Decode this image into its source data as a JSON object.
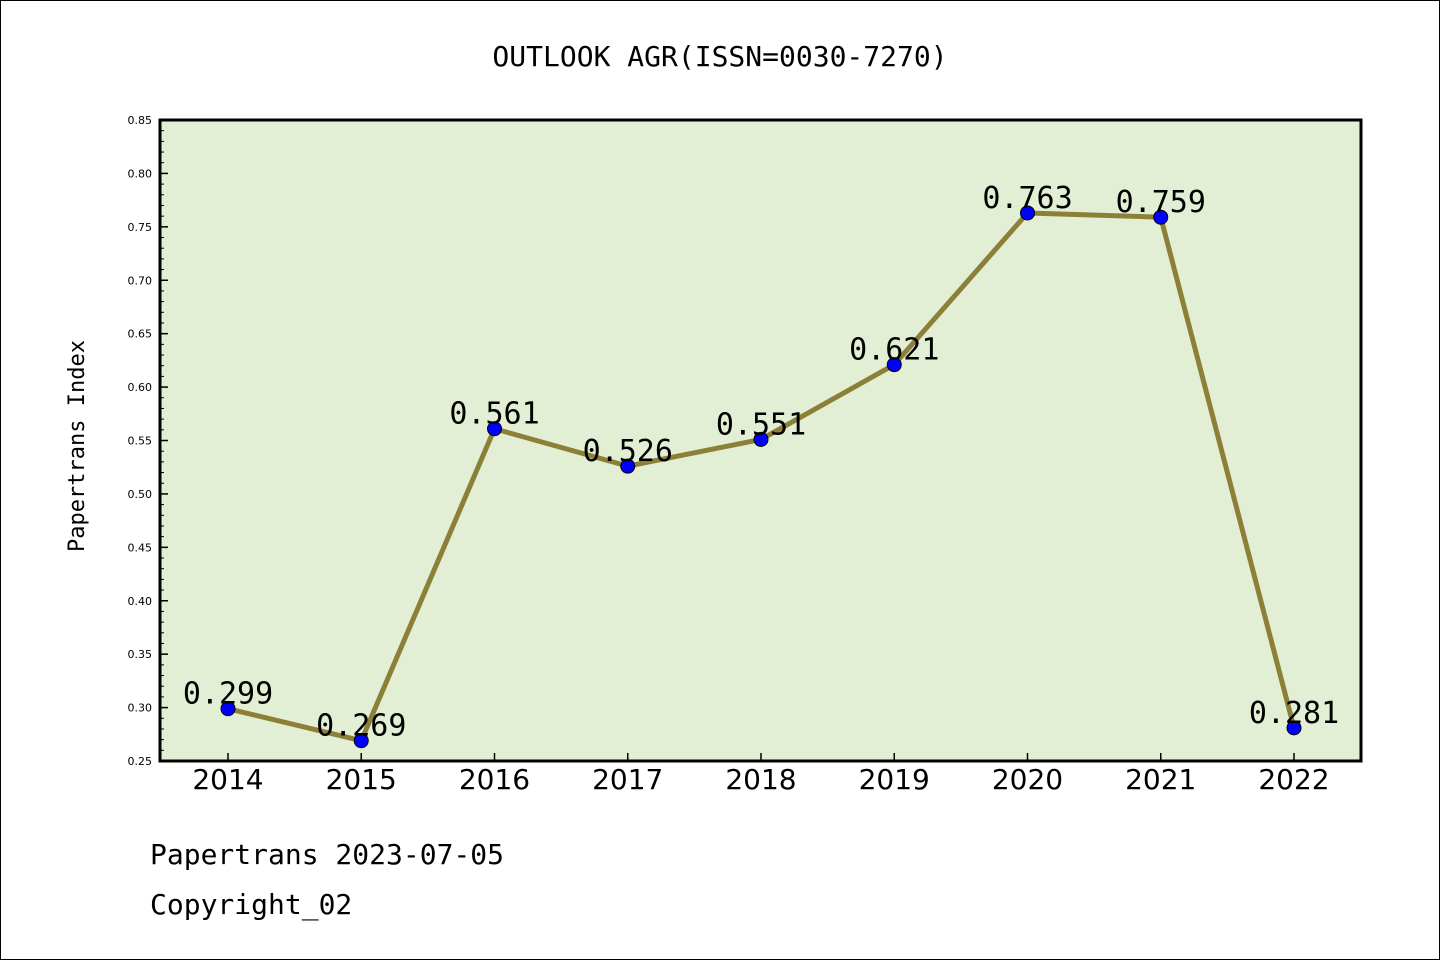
{
  "chart_data": {
    "type": "line",
    "title": "OUTLOOK AGR(ISSN=0030-7270)",
    "xlabel": "",
    "ylabel": "Papertrans Index",
    "categories": [
      "2014",
      "2015",
      "2016",
      "2017",
      "2018",
      "2019",
      "2020",
      "2021",
      "2022"
    ],
    "series": [
      {
        "values": [
          0.299,
          0.269,
          0.561,
          0.526,
          0.551,
          0.621,
          0.763,
          0.759,
          0.281
        ],
        "labels": [
          "0.299",
          "0.269",
          "0.561",
          "0.526",
          "0.551",
          "0.621",
          "0.763",
          "0.759",
          "0.281"
        ]
      }
    ],
    "ylim": [
      0.25,
      0.85
    ],
    "yticks": [
      "0.25",
      "0.30",
      "0.35",
      "0.40",
      "0.45",
      "0.50",
      "0.55",
      "0.60",
      "0.65",
      "0.70",
      "0.75",
      "0.80",
      "0.85"
    ],
    "grid": false,
    "legend": "none",
    "colors": {
      "plot_background": "#e2efd5",
      "line": "#8c8038",
      "marker": "#0000ff",
      "axes": "#000000"
    }
  },
  "footer": {
    "line1": "Papertrans 2023-07-05",
    "line2": "Copyright_02"
  }
}
